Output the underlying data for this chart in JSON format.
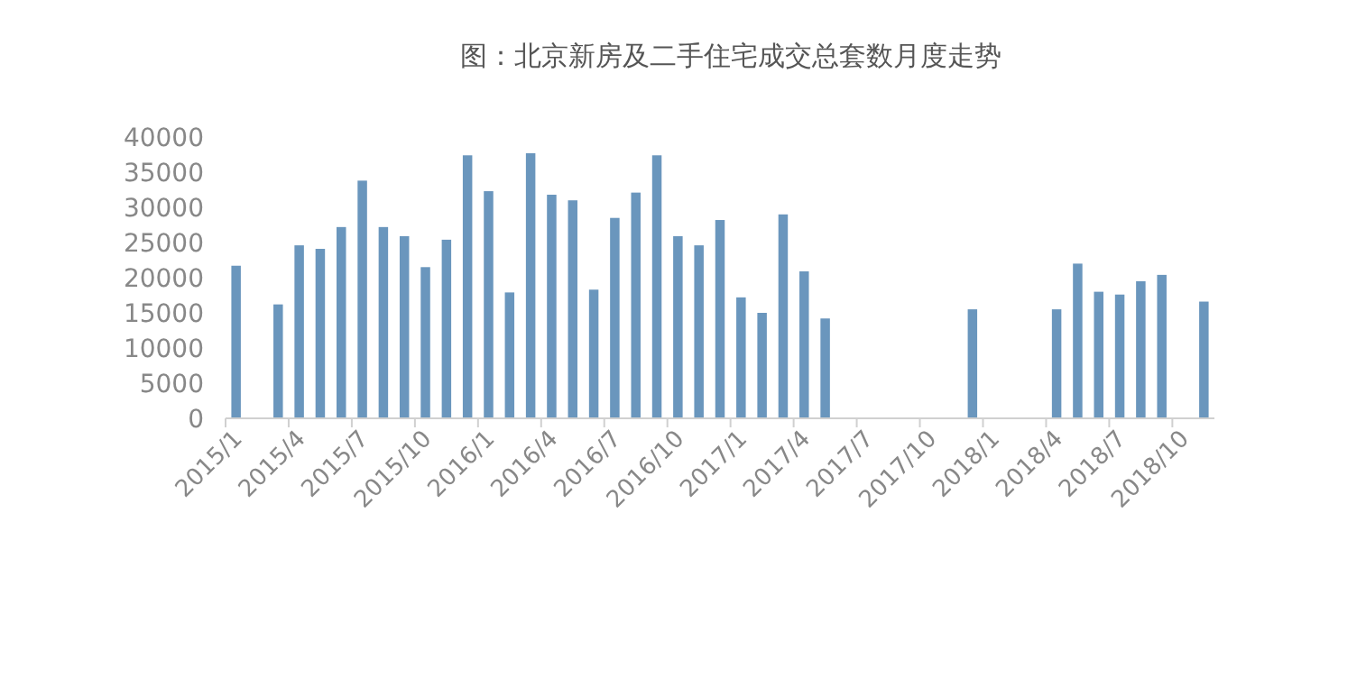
{
  "chart_data": {
    "type": "bar",
    "title": "图：北京新房及二手住宅成交总套数月度走势",
    "categories": [
      "2015/1",
      null,
      null,
      "2015/4",
      null,
      null,
      "2015/7",
      null,
      null,
      "2015/10",
      null,
      null,
      "2016/1",
      null,
      null,
      "2016/4",
      null,
      null,
      "2016/7",
      null,
      null,
      "2016/10",
      null,
      null,
      "2017/1",
      null,
      null,
      "2017/4",
      null,
      null,
      "2017/7",
      null,
      null,
      "2017/10",
      null,
      null,
      "2018/1",
      null,
      null,
      "2018/4",
      null,
      null,
      "2018/7",
      null,
      null,
      "2018/10",
      null
    ],
    "values": [
      21700,
      null,
      16200,
      24600,
      24100,
      27200,
      33800,
      27200,
      25900,
      21500,
      25400,
      37400,
      32300,
      17900,
      37700,
      31800,
      31000,
      18300,
      28500,
      32100,
      37400,
      25900,
      24600,
      28200,
      17200,
      15000,
      29000,
      20900,
      14200,
      null,
      null,
      null,
      null,
      null,
      null,
      15500,
      null,
      null,
      null,
      15500,
      22000,
      18000,
      17600,
      19500,
      20400,
      null,
      16600
    ],
    "color": "#6a96bd",
    "ylim": [
      0,
      40000
    ],
    "yticks": [
      0,
      5000,
      10000,
      15000,
      20000,
      25000,
      30000,
      35000,
      40000
    ],
    "grid": false
  }
}
